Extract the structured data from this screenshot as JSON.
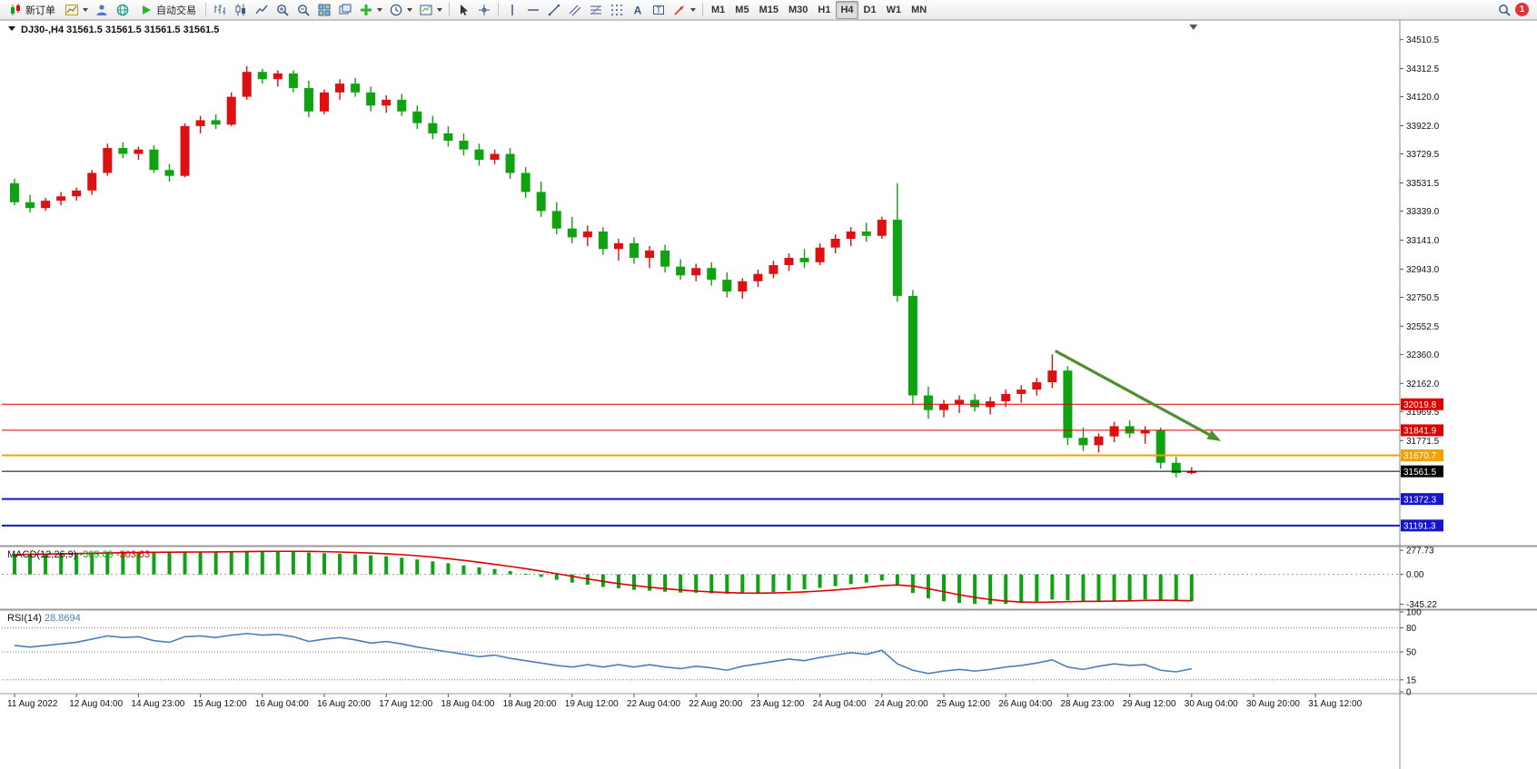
{
  "toolbar": {
    "new_order_label": "新订单",
    "auto_trading_label": "自动交易",
    "text_tool_glyph": "A",
    "label_tool_glyph": "T",
    "timeframes": [
      "M1",
      "M5",
      "M15",
      "M30",
      "H1",
      "H4",
      "D1",
      "W1",
      "MN"
    ],
    "active_timeframe": "H4",
    "notification_count": "1"
  },
  "chart": {
    "title": "DJ30-,H4 31561.5 31561.5 31561.5 31561.5"
  },
  "chart_data": {
    "type": "candlestick",
    "symbol": "DJ30-",
    "period": "H4",
    "ohlc_display": [
      "31561.5",
      "31561.5",
      "31561.5",
      "31561.5"
    ],
    "ylim": [
      31060,
      34620
    ],
    "y_ticks": [
      "34510.5",
      "34312.5",
      "34120.0",
      "33922.0",
      "33729.5",
      "33531.5",
      "33339.0",
      "33141.0",
      "32943.0",
      "32750.5",
      "32552.5",
      "32360.0",
      "32162.0",
      "31969.5",
      "31771.5"
    ],
    "x_labels": [
      "11 Aug 2022",
      "12 Aug 04:00",
      "14 Aug 23:00",
      "15 Aug 12:00",
      "16 Aug 04:00",
      "16 Aug 20:00",
      "17 Aug 12:00",
      "18 Aug 04:00",
      "18 Aug 20:00",
      "19 Aug 12:00",
      "22 Aug 04:00",
      "22 Aug 20:00",
      "23 Aug 12:00",
      "24 Aug 04:00",
      "24 Aug 20:00",
      "25 Aug 12:00",
      "26 Aug 04:00",
      "28 Aug 23:00",
      "29 Aug 12:00",
      "30 Aug 04:00",
      "30 Aug 20:00",
      "31 Aug 12:00"
    ],
    "x_label_step": 4,
    "colors": {
      "up": "#dd1111",
      "down": "#0fa312"
    },
    "candles": [
      [
        33530,
        33560,
        33380,
        33400
      ],
      [
        33400,
        33450,
        33330,
        33360
      ],
      [
        33360,
        33430,
        33340,
        33410
      ],
      [
        33410,
        33470,
        33380,
        33440
      ],
      [
        33440,
        33500,
        33410,
        33480
      ],
      [
        33480,
        33620,
        33450,
        33600
      ],
      [
        33600,
        33800,
        33580,
        33770
      ],
      [
        33770,
        33810,
        33700,
        33730
      ],
      [
        33730,
        33780,
        33690,
        33760
      ],
      [
        33760,
        33790,
        33600,
        33620
      ],
      [
        33620,
        33660,
        33540,
        33580
      ],
      [
        33580,
        33940,
        33570,
        33920
      ],
      [
        33920,
        33990,
        33870,
        33960
      ],
      [
        33960,
        34000,
        33900,
        33930
      ],
      [
        33930,
        34150,
        33920,
        34120
      ],
      [
        34120,
        34330,
        34100,
        34290
      ],
      [
        34290,
        34310,
        34210,
        34240
      ],
      [
        34240,
        34300,
        34190,
        34280
      ],
      [
        34280,
        34300,
        34150,
        34180
      ],
      [
        34180,
        34230,
        33980,
        34020
      ],
      [
        34020,
        34170,
        34000,
        34150
      ],
      [
        34150,
        34240,
        34100,
        34210
      ],
      [
        34210,
        34250,
        34120,
        34150
      ],
      [
        34150,
        34190,
        34020,
        34060
      ],
      [
        34060,
        34130,
        34010,
        34100
      ],
      [
        34100,
        34140,
        33990,
        34020
      ],
      [
        34020,
        34060,
        33900,
        33940
      ],
      [
        33940,
        33990,
        33830,
        33870
      ],
      [
        33870,
        33920,
        33780,
        33820
      ],
      [
        33820,
        33870,
        33720,
        33760
      ],
      [
        33760,
        33800,
        33650,
        33690
      ],
      [
        33690,
        33760,
        33660,
        33730
      ],
      [
        33730,
        33770,
        33560,
        33600
      ],
      [
        33600,
        33640,
        33430,
        33470
      ],
      [
        33470,
        33540,
        33300,
        33340
      ],
      [
        33340,
        33400,
        33180,
        33220
      ],
      [
        33220,
        33300,
        33120,
        33160
      ],
      [
        33160,
        33240,
        33100,
        33200
      ],
      [
        33200,
        33230,
        33040,
        33080
      ],
      [
        33080,
        33150,
        33000,
        33120
      ],
      [
        33120,
        33160,
        32980,
        33020
      ],
      [
        33020,
        33100,
        32950,
        33070
      ],
      [
        33070,
        33110,
        32920,
        32960
      ],
      [
        32960,
        33010,
        32870,
        32900
      ],
      [
        32900,
        32980,
        32860,
        32950
      ],
      [
        32950,
        32990,
        32830,
        32870
      ],
      [
        32870,
        32920,
        32750,
        32790
      ],
      [
        32790,
        32880,
        32740,
        32860
      ],
      [
        32860,
        32940,
        32820,
        32910
      ],
      [
        32910,
        33000,
        32880,
        32970
      ],
      [
        32970,
        33050,
        32930,
        33020
      ],
      [
        33020,
        33080,
        32950,
        32990
      ],
      [
        32990,
        33120,
        32970,
        33090
      ],
      [
        33090,
        33180,
        33050,
        33150
      ],
      [
        33150,
        33230,
        33100,
        33200
      ],
      [
        33200,
        33260,
        33130,
        33170
      ],
      [
        33170,
        33300,
        33150,
        33280
      ],
      [
        33280,
        33530,
        32720,
        32760
      ],
      [
        32760,
        32800,
        32020,
        32080
      ],
      [
        32080,
        32140,
        31920,
        31980
      ],
      [
        31980,
        32050,
        31930,
        32020
      ],
      [
        32020,
        32080,
        31960,
        32050
      ],
      [
        32050,
        32090,
        31970,
        32000
      ],
      [
        32000,
        32070,
        31950,
        32040
      ],
      [
        32040,
        32120,
        32000,
        32090
      ],
      [
        32090,
        32150,
        32030,
        32120
      ],
      [
        32120,
        32200,
        32080,
        32170
      ],
      [
        32170,
        32360,
        32130,
        32250
      ],
      [
        32250,
        32280,
        31740,
        31790
      ],
      [
        31790,
        31860,
        31700,
        31740
      ],
      [
        31740,
        31820,
        31690,
        31800
      ],
      [
        31800,
        31900,
        31760,
        31870
      ],
      [
        31870,
        31910,
        31790,
        31820
      ],
      [
        31820,
        31870,
        31750,
        31840
      ],
      [
        31840,
        31860,
        31580,
        31620
      ],
      [
        31620,
        31660,
        31520,
        31550
      ],
      [
        31550,
        31590,
        31540,
        31561.5
      ]
    ],
    "horizontal_lines": [
      {
        "label": "32019.8",
        "price": 32019.8,
        "color": "#dd0000",
        "width": 1
      },
      {
        "label": "31841.9",
        "price": 31841.9,
        "color": "#dd0000",
        "width": 1
      },
      {
        "label": "31670.7",
        "price": 31670.7,
        "color": "#efa200",
        "width": 2
      },
      {
        "label": "31561.5",
        "price": 31561.5,
        "color": "#000000",
        "width": 1,
        "role": "current-price"
      },
      {
        "label": "31372.3",
        "price": 31372.3,
        "color": "#1515cc",
        "width": 2
      },
      {
        "label": "31191.3",
        "price": 31191.3,
        "color": "#1515cc",
        "width": 2
      }
    ],
    "trend_arrow": {
      "from_bar": 67.2,
      "from_price": 32384,
      "to_bar": 77.9,
      "to_price": 31768,
      "color": "#4e8f2e"
    },
    "indicators": {
      "macd": {
        "label": "MACD(12,26,9)",
        "value_main": "-309.09",
        "value_signal": "-303.63",
        "ylim": [
          -370,
          300
        ],
        "axis_ticks": [
          "277.73",
          "0.00",
          "-345.22"
        ],
        "hist_color": "#0fa312",
        "signal_color": "#dd0000",
        "histogram": [
          235,
          238,
          240,
          243,
          246,
          252,
          258,
          260,
          262,
          258,
          254,
          260,
          264,
          265,
          268,
          272,
          272,
          270,
          264,
          252,
          245,
          240,
          232,
          220,
          208,
          192,
          172,
          150,
          128,
          104,
          80,
          62,
          38,
          8,
          -28,
          -62,
          -95,
          -120,
          -145,
          -160,
          -178,
          -188,
          -200,
          -210,
          -212,
          -218,
          -225,
          -222,
          -215,
          -202,
          -185,
          -172,
          -155,
          -135,
          -112,
          -95,
          -70,
          -130,
          -215,
          -275,
          -310,
          -330,
          -340,
          -345,
          -340,
          -330,
          -312,
          -290,
          -300,
          -310,
          -312,
          -305,
          -298,
          -288,
          -295,
          -305,
          -309
        ],
        "signal": [
          228,
          231,
          234,
          237,
          240,
          243,
          247,
          250,
          253,
          255,
          256,
          257,
          258,
          259,
          261,
          263,
          265,
          266,
          266,
          265,
          262,
          258,
          252,
          246,
          238,
          228,
          215,
          200,
          182,
          162,
          140,
          116,
          92,
          66,
          38,
          8,
          -22,
          -52,
          -80,
          -106,
          -128,
          -148,
          -165,
          -180,
          -192,
          -202,
          -210,
          -215,
          -216,
          -214,
          -209,
          -202,
          -192,
          -180,
          -165,
          -148,
          -130,
          -122,
          -135,
          -165,
          -200,
          -235,
          -265,
          -290,
          -308,
          -318,
          -322,
          -320,
          -315,
          -312,
          -310,
          -308,
          -305,
          -300,
          -298,
          -300,
          -304
        ]
      },
      "rsi": {
        "label": "RSI(14)",
        "value": "28.8694",
        "ylim": [
          0,
          100
        ],
        "axis_ticks": [
          "100",
          "80",
          "50",
          "15",
          "0"
        ],
        "levels": [
          80,
          50,
          15
        ],
        "line_color": "#4a7ebb",
        "series": [
          58,
          56,
          58,
          60,
          62,
          66,
          70,
          68,
          69,
          64,
          62,
          69,
          70,
          68,
          71,
          73,
          71,
          72,
          69,
          63,
          66,
          68,
          65,
          61,
          63,
          60,
          56,
          53,
          50,
          47,
          44,
          46,
          42,
          39,
          36,
          33,
          31,
          34,
          31,
          34,
          31,
          34,
          31,
          29,
          32,
          30,
          27,
          32,
          35,
          38,
          41,
          39,
          43,
          46,
          49,
          47,
          52,
          35,
          27,
          23,
          26,
          28,
          26,
          28,
          31,
          33,
          36,
          40,
          31,
          28,
          32,
          35,
          33,
          34,
          27,
          25,
          28.87
        ]
      }
    }
  }
}
